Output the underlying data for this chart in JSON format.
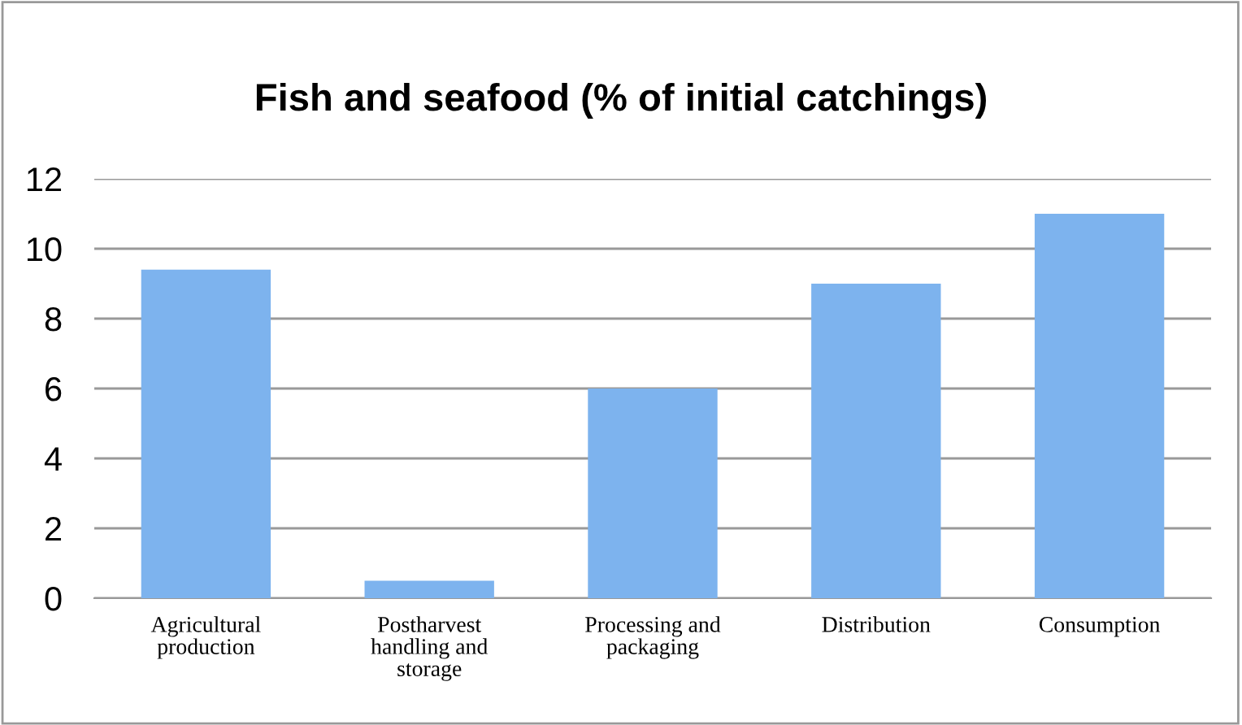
{
  "chart_data": {
    "type": "bar",
    "title": "Fish and seafood (% of initial catchings)",
    "categories": [
      "Agricultural\nproduction",
      "Postharvest\nhandling and\nstorage",
      "Processing and\npackaging",
      "Distribution",
      "Consumption"
    ],
    "values": [
      9.4,
      0.5,
      6.0,
      9.0,
      11.0
    ],
    "color": "#7db3ee",
    "ylim": [
      0,
      12
    ],
    "yticks": [
      0,
      2,
      4,
      6,
      8,
      10,
      12
    ],
    "grid": "y",
    "legend": false
  }
}
